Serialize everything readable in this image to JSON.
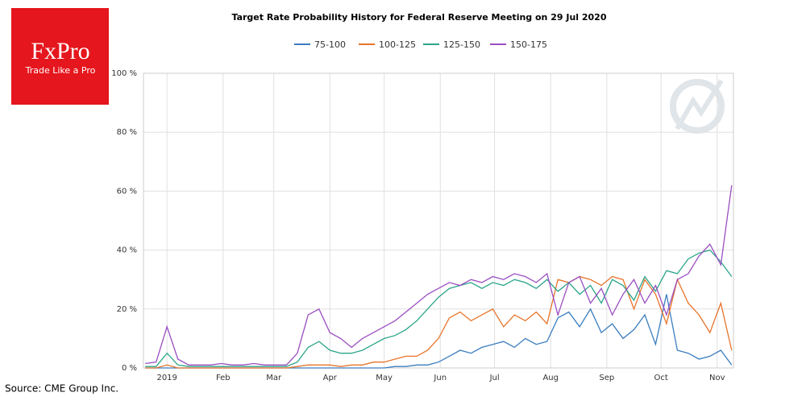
{
  "logo": {
    "brand": "FxPro",
    "tagline": "Trade Like a Pro"
  },
  "source": "Source: CME Group Inc.",
  "chart_data": {
    "type": "line",
    "title": "Target Rate Probability History for Federal Reserve Meeting on 29 Jul 2020",
    "x": [
      -12,
      -6,
      0,
      6,
      12,
      18,
      24,
      30,
      36,
      42,
      48,
      54,
      60,
      66,
      72,
      78,
      84,
      90,
      96,
      102,
      108,
      114,
      120,
      126,
      132,
      138,
      144,
      150,
      156,
      162,
      168,
      174,
      180,
      186,
      192,
      198,
      204,
      210,
      216,
      222,
      228,
      234,
      240,
      246,
      252,
      258,
      264,
      270,
      276,
      282,
      288,
      294,
      300,
      306,
      312
    ],
    "series": [
      {
        "name": "75-100",
        "color": "#3a7dbf",
        "values": [
          0,
          0,
          0,
          0,
          0,
          0,
          0,
          0,
          0,
          0,
          0,
          0,
          0,
          0,
          0,
          0,
          0,
          0,
          0,
          0,
          0,
          0,
          0,
          0.5,
          0.5,
          1,
          1,
          2,
          4,
          6,
          5,
          7,
          8,
          9,
          7,
          10,
          8,
          9,
          17,
          19,
          14,
          20,
          12,
          15,
          10,
          13,
          18,
          8,
          25,
          6,
          5,
          3,
          4,
          6,
          1
        ]
      },
      {
        "name": "100-125",
        "color": "#e8742a",
        "values": [
          0,
          0,
          1,
          0,
          0,
          0,
          0,
          0,
          0,
          0,
          0,
          0,
          0,
          0,
          0.5,
          1,
          1,
          1,
          0.5,
          1,
          1,
          2,
          2,
          3,
          4,
          4,
          6,
          10,
          17,
          19,
          16,
          18,
          20,
          14,
          18,
          16,
          19,
          15,
          30,
          29,
          31,
          30,
          28,
          31,
          30,
          20,
          30,
          25,
          15,
          30,
          22,
          18,
          12,
          22,
          6
        ]
      },
      {
        "name": "125-150",
        "color": "#2ba58a",
        "values": [
          0.5,
          0.5,
          5,
          1,
          0.5,
          0.5,
          0.5,
          0.5,
          0.5,
          0.5,
          0.5,
          0.5,
          0.5,
          0.5,
          2,
          7,
          9,
          6,
          5,
          5,
          6,
          8,
          10,
          11,
          13,
          16,
          20,
          24,
          27,
          28,
          29,
          27,
          29,
          28,
          30,
          29,
          27,
          30,
          26,
          29,
          25,
          28,
          22,
          30,
          28,
          23,
          31,
          26,
          33,
          32,
          37,
          39,
          40,
          36,
          31
        ]
      },
      {
        "name": "150-175",
        "color": "#9b4fc2",
        "values": [
          1.5,
          2,
          14,
          3,
          1,
          1,
          1,
          1.5,
          1,
          1,
          1.5,
          1,
          1,
          1,
          5,
          18,
          20,
          12,
          10,
          7,
          10,
          12,
          14,
          16,
          19,
          22,
          25,
          27,
          29,
          28,
          30,
          29,
          31,
          30,
          32,
          31,
          29,
          32,
          18,
          29,
          31,
          22,
          27,
          18,
          25,
          30,
          22,
          28,
          18,
          30,
          32,
          38,
          42,
          35,
          62
        ]
      }
    ],
    "xlim": [
      -13,
      313
    ],
    "xticks": [
      {
        "value": 0,
        "label": "2019"
      },
      {
        "value": 31,
        "label": "Feb"
      },
      {
        "value": 59,
        "label": "Mar"
      },
      {
        "value": 90,
        "label": "Apr"
      },
      {
        "value": 120,
        "label": "May"
      },
      {
        "value": 151,
        "label": "Jun"
      },
      {
        "value": 181,
        "label": "Jul"
      },
      {
        "value": 212,
        "label": "Aug"
      },
      {
        "value": 243,
        "label": "Sep"
      },
      {
        "value": 273,
        "label": "Oct"
      },
      {
        "value": 304,
        "label": "Nov"
      }
    ],
    "ylim": [
      0,
      100
    ],
    "yticks": [
      {
        "value": 0,
        "label": "0 %"
      },
      {
        "value": 20,
        "label": "20 %"
      },
      {
        "value": 40,
        "label": "40 %"
      },
      {
        "value": 60,
        "label": "60 %"
      },
      {
        "value": 80,
        "label": "80 %"
      },
      {
        "value": 100,
        "label": "100 %"
      }
    ],
    "grid": true
  }
}
